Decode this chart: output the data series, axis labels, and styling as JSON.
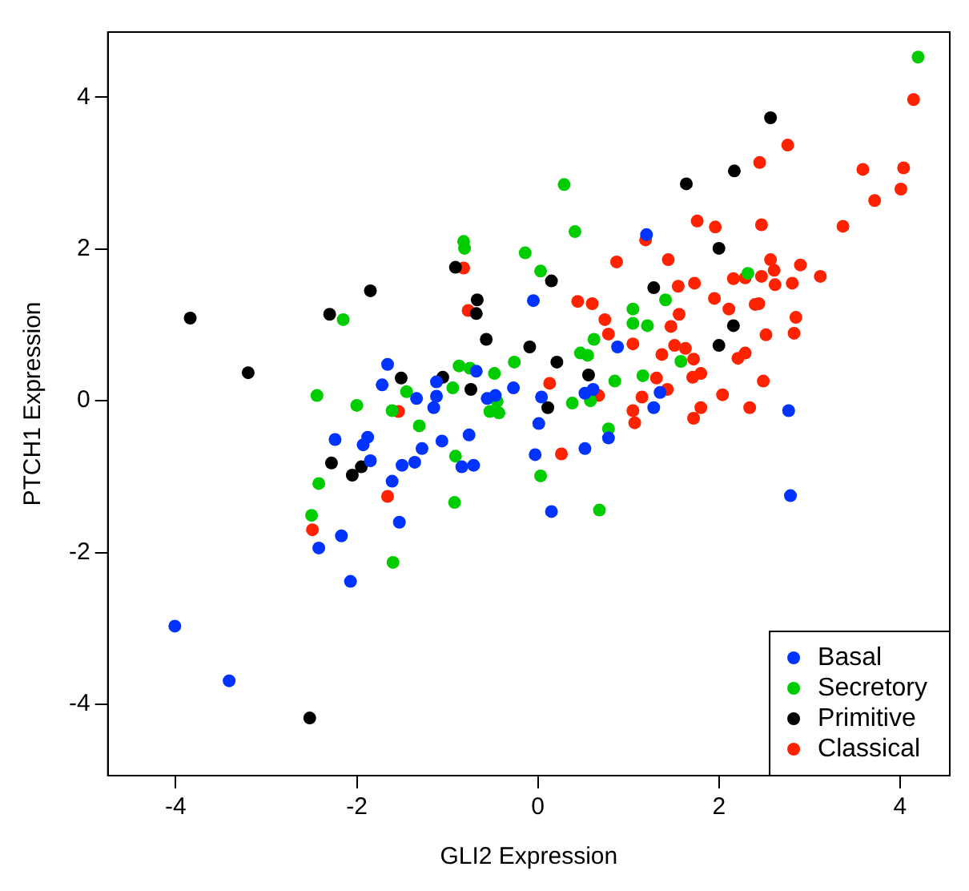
{
  "chart_data": {
    "type": "scatter",
    "xlabel": "GLI2 Expression",
    "ylabel": "PTCH1 Expression",
    "xlim": [
      -4.75,
      4.55
    ],
    "ylim": [
      -4.94,
      4.86
    ],
    "xticks": [
      -4,
      -2,
      0,
      2,
      4
    ],
    "yticks": [
      -4,
      -2,
      0,
      2,
      4
    ],
    "grid": false,
    "legend": "bottom right",
    "marker": "circle",
    "series": [
      {
        "name": "Basal",
        "color": "#0033ff",
        "x": [
          -4.01,
          -3.41,
          -2.42,
          -2.17,
          -2.07,
          -2.24,
          -1.93,
          -1.88,
          -1.85,
          -1.61,
          -1.66,
          -1.72,
          -1.53,
          -1.5,
          -1.36,
          -1.28,
          -1.34,
          -1.15,
          -1.12,
          -1.12,
          -1.06,
          -0.84,
          -0.71,
          -0.76,
          -0.68,
          -0.56,
          -0.47,
          -0.27,
          -0.05,
          0.04,
          0.01,
          -0.03,
          0.15,
          0.52,
          0.61,
          0.52,
          0.78,
          0.88,
          1.2,
          1.35,
          1.28,
          2.77,
          2.79
        ],
        "values": [
          -2.97,
          -3.69,
          -1.94,
          -1.78,
          -2.38,
          -0.51,
          -0.58,
          -0.48,
          -0.79,
          -1.06,
          0.48,
          0.21,
          -1.6,
          -0.85,
          -0.81,
          -0.63,
          0.03,
          -0.09,
          0.25,
          0.06,
          -0.53,
          -0.87,
          -0.85,
          -0.45,
          0.39,
          0.03,
          0.07,
          0.17,
          1.32,
          0.05,
          -0.3,
          -0.71,
          -1.46,
          0.1,
          0.15,
          -0.63,
          -0.49,
          0.71,
          2.19,
          0.11,
          -0.09,
          -0.13,
          -1.25
        ]
      },
      {
        "name": "Secretory",
        "color": "#00cc00",
        "x": [
          -2.44,
          -2.42,
          -2.5,
          -1.6,
          -2.15,
          -2.0,
          -1.61,
          -1.45,
          -1.31,
          -0.94,
          -0.87,
          -0.75,
          -0.91,
          -0.92,
          -0.82,
          -0.81,
          -0.48,
          -0.26,
          -0.53,
          -0.43,
          -0.45,
          -0.14,
          0.03,
          0.03,
          0.29,
          0.41,
          0.38,
          0.58,
          0.47,
          0.55,
          0.62,
          0.68,
          0.78,
          0.85,
          1.05,
          1.05,
          1.21,
          1.16,
          1.41,
          1.58,
          2.32,
          4.2
        ],
        "values": [
          0.07,
          -1.09,
          -1.51,
          -2.13,
          1.07,
          -0.06,
          -0.13,
          0.12,
          -0.33,
          0.17,
          0.46,
          0.43,
          -0.73,
          -1.34,
          2.1,
          2.01,
          0.36,
          0.51,
          -0.14,
          -0.16,
          -0.01,
          1.95,
          1.71,
          -0.99,
          2.85,
          2.23,
          -0.03,
          0.0,
          0.63,
          0.6,
          0.81,
          -1.44,
          -0.37,
          0.26,
          1.21,
          1.02,
          0.99,
          0.33,
          1.33,
          0.52,
          1.68,
          4.53
        ]
      },
      {
        "name": "Primitive",
        "color": "#000000",
        "x": [
          -3.84,
          -3.2,
          -2.52,
          -2.3,
          -2.28,
          -2.05,
          -1.95,
          -1.85,
          -1.51,
          -1.05,
          -0.91,
          -0.74,
          -0.67,
          -0.68,
          -0.57,
          -0.09,
          0.15,
          0.21,
          0.11,
          0.56,
          1.28,
          1.64,
          2.0,
          2.17,
          2.16,
          2.0,
          2.57
        ],
        "values": [
          1.09,
          0.37,
          -4.18,
          1.14,
          -0.82,
          -0.98,
          -0.87,
          1.45,
          0.3,
          0.31,
          1.76,
          0.15,
          1.33,
          1.15,
          0.81,
          0.71,
          1.58,
          0.51,
          -0.09,
          0.34,
          1.49,
          2.86,
          2.01,
          3.03,
          0.99,
          0.73,
          3.73
        ]
      },
      {
        "name": "Classical",
        "color": "#ff2200",
        "x": [
          -2.49,
          -1.66,
          -1.54,
          -0.82,
          -0.77,
          0.13,
          0.26,
          0.44,
          0.6,
          0.67,
          0.74,
          0.78,
          0.87,
          1.05,
          1.05,
          1.07,
          1.15,
          1.19,
          1.31,
          1.37,
          1.43,
          1.44,
          1.47,
          1.51,
          1.55,
          1.56,
          1.63,
          1.72,
          1.72,
          1.71,
          1.8,
          1.8,
          1.73,
          1.76,
          1.95,
          1.96,
          2.04,
          2.11,
          2.16,
          2.21,
          2.29,
          2.29,
          2.34,
          2.4,
          2.44,
          2.45,
          2.47,
          2.47,
          2.49,
          2.52,
          2.57,
          2.61,
          2.62,
          2.76,
          2.81,
          2.83,
          2.85,
          2.9,
          3.12,
          3.37,
          3.59,
          3.72,
          4.01,
          4.04,
          4.15
        ],
        "values": [
          -1.7,
          -1.26,
          -0.14,
          1.75,
          1.19,
          0.23,
          -0.7,
          1.31,
          1.28,
          0.07,
          1.07,
          0.88,
          1.83,
          0.75,
          -0.13,
          -0.29,
          0.05,
          2.12,
          0.3,
          0.61,
          0.15,
          1.86,
          0.98,
          0.73,
          1.51,
          1.14,
          0.69,
          0.55,
          -0.23,
          0.31,
          0.36,
          -0.09,
          1.55,
          2.37,
          1.35,
          2.29,
          0.08,
          1.21,
          1.61,
          0.56,
          1.62,
          0.63,
          -0.09,
          1.27,
          1.28,
          3.14,
          2.32,
          1.64,
          0.26,
          0.87,
          1.86,
          1.72,
          1.53,
          3.37,
          1.55,
          0.89,
          1.1,
          1.79,
          1.64,
          2.3,
          3.05,
          2.64,
          2.79,
          3.07,
          3.97
        ]
      }
    ]
  }
}
